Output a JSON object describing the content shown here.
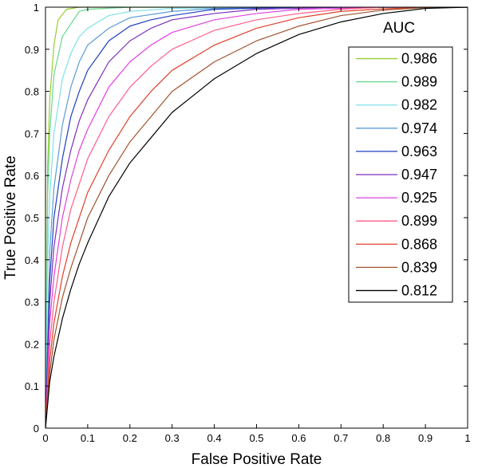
{
  "chart_data": {
    "type": "line",
    "title": "",
    "xlabel": "False Positive Rate",
    "ylabel": "True Positive Rate",
    "xlim": [
      0,
      1
    ],
    "ylim": [
      0,
      1
    ],
    "x_ticks": [
      0,
      0.1,
      0.2,
      0.3,
      0.4,
      0.5,
      0.6,
      0.7,
      0.8,
      0.9,
      1
    ],
    "y_ticks": [
      0,
      0.1,
      0.2,
      0.3,
      0.4,
      0.5,
      0.6,
      0.7,
      0.8,
      0.9,
      1
    ],
    "x_tick_labels": [
      "0",
      "0.1",
      "0.2",
      "0.3",
      "0.4",
      "0.5",
      "0.6",
      "0.7",
      "0.8",
      "0.9",
      "1"
    ],
    "y_tick_labels": [
      "0",
      "0.1",
      "0.2",
      "0.3",
      "0.4",
      "0.5",
      "0.6",
      "0.7",
      "0.8",
      "0.9",
      "1"
    ],
    "grid": false,
    "legend": {
      "title": "AUC",
      "placement": "top-right"
    },
    "series": [
      {
        "name": "0.986",
        "color": "#9ACD32",
        "x": [
          0,
          0.005,
          0.01,
          0.02,
          0.03,
          0.05,
          0.08,
          0.12,
          0.2,
          0.4,
          0.7,
          1
        ],
        "y": [
          0,
          0.62,
          0.78,
          0.91,
          0.97,
          0.995,
          1,
          1,
          1,
          1,
          1,
          1
        ]
      },
      {
        "name": "0.989",
        "color": "#66D98C",
        "x": [
          0,
          0.005,
          0.01,
          0.02,
          0.04,
          0.06,
          0.08,
          0.1,
          0.2,
          0.4,
          0.7,
          1
        ],
        "y": [
          0,
          0.55,
          0.7,
          0.84,
          0.93,
          0.96,
          0.99,
          0.995,
          1,
          1,
          1,
          1
        ]
      },
      {
        "name": "0.982",
        "color": "#7FE0E8",
        "x": [
          0,
          0.005,
          0.01,
          0.02,
          0.04,
          0.06,
          0.08,
          0.1,
          0.15,
          0.2,
          0.3,
          0.5,
          0.7,
          1
        ],
        "y": [
          0,
          0.4,
          0.55,
          0.7,
          0.83,
          0.89,
          0.93,
          0.95,
          0.98,
          0.99,
          0.997,
          1,
          1,
          1
        ]
      },
      {
        "name": "0.974",
        "color": "#5B9BD5",
        "x": [
          0,
          0.01,
          0.02,
          0.04,
          0.06,
          0.08,
          0.1,
          0.15,
          0.2,
          0.3,
          0.4,
          0.6,
          1
        ],
        "y": [
          0,
          0.42,
          0.57,
          0.72,
          0.81,
          0.87,
          0.91,
          0.95,
          0.975,
          0.99,
          0.997,
          1,
          1
        ]
      },
      {
        "name": "0.963",
        "color": "#1F3FBF",
        "x": [
          0,
          0.01,
          0.02,
          0.04,
          0.06,
          0.08,
          0.1,
          0.15,
          0.2,
          0.25,
          0.3,
          0.4,
          0.6,
          1
        ],
        "y": [
          0,
          0.35,
          0.5,
          0.64,
          0.74,
          0.8,
          0.85,
          0.92,
          0.955,
          0.97,
          0.98,
          0.995,
          1,
          1
        ]
      },
      {
        "name": "0.947",
        "color": "#7B2FBE",
        "x": [
          0,
          0.01,
          0.02,
          0.04,
          0.06,
          0.08,
          0.1,
          0.15,
          0.2,
          0.25,
          0.3,
          0.4,
          0.5,
          0.7,
          1
        ],
        "y": [
          0,
          0.3,
          0.43,
          0.57,
          0.66,
          0.73,
          0.78,
          0.87,
          0.92,
          0.95,
          0.97,
          0.985,
          0.995,
          1,
          1
        ]
      },
      {
        "name": "0.925",
        "color": "#E040E0",
        "x": [
          0,
          0.01,
          0.02,
          0.04,
          0.06,
          0.08,
          0.1,
          0.15,
          0.2,
          0.25,
          0.3,
          0.4,
          0.5,
          0.6,
          0.8,
          1
        ],
        "y": [
          0,
          0.25,
          0.36,
          0.5,
          0.59,
          0.66,
          0.71,
          0.81,
          0.87,
          0.91,
          0.94,
          0.97,
          0.985,
          0.995,
          1,
          1
        ]
      },
      {
        "name": "0.899",
        "color": "#FF5C8A",
        "x": [
          0,
          0.01,
          0.02,
          0.04,
          0.06,
          0.08,
          0.1,
          0.15,
          0.2,
          0.25,
          0.3,
          0.4,
          0.5,
          0.6,
          0.7,
          0.8,
          1
        ],
        "y": [
          0,
          0.2,
          0.3,
          0.43,
          0.52,
          0.58,
          0.64,
          0.74,
          0.81,
          0.86,
          0.9,
          0.945,
          0.97,
          0.985,
          0.995,
          1,
          1
        ]
      },
      {
        "name": "0.868",
        "color": "#E0402A",
        "x": [
          0,
          0.01,
          0.02,
          0.04,
          0.06,
          0.08,
          0.1,
          0.15,
          0.2,
          0.25,
          0.3,
          0.4,
          0.5,
          0.6,
          0.7,
          0.8,
          0.9,
          1
        ],
        "y": [
          0,
          0.16,
          0.25,
          0.36,
          0.44,
          0.5,
          0.56,
          0.66,
          0.74,
          0.8,
          0.85,
          0.91,
          0.95,
          0.975,
          0.99,
          0.996,
          1,
          1
        ]
      },
      {
        "name": "0.839",
        "color": "#A0522D",
        "x": [
          0,
          0.01,
          0.02,
          0.04,
          0.06,
          0.08,
          0.1,
          0.15,
          0.2,
          0.25,
          0.3,
          0.4,
          0.5,
          0.6,
          0.7,
          0.8,
          0.9,
          1
        ],
        "y": [
          0,
          0.13,
          0.21,
          0.31,
          0.38,
          0.44,
          0.5,
          0.6,
          0.68,
          0.74,
          0.8,
          0.87,
          0.92,
          0.955,
          0.98,
          0.993,
          0.999,
          1
        ]
      },
      {
        "name": "0.812",
        "color": "#000000",
        "x": [
          0,
          0.01,
          0.02,
          0.04,
          0.06,
          0.08,
          0.1,
          0.15,
          0.2,
          0.25,
          0.3,
          0.4,
          0.5,
          0.6,
          0.7,
          0.8,
          0.9,
          1
        ],
        "y": [
          0,
          0.11,
          0.17,
          0.26,
          0.33,
          0.39,
          0.44,
          0.55,
          0.63,
          0.69,
          0.75,
          0.83,
          0.89,
          0.935,
          0.965,
          0.985,
          0.997,
          1
        ]
      }
    ]
  }
}
